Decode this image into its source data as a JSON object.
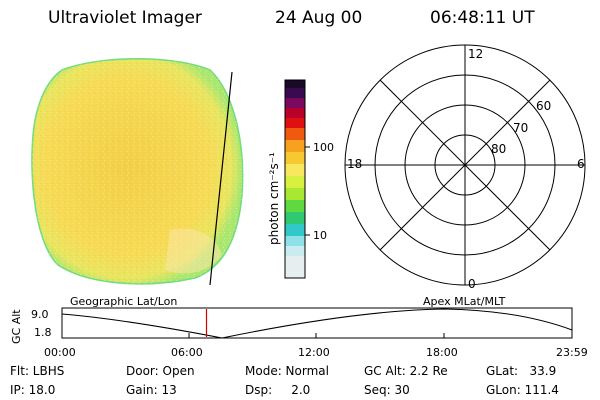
{
  "header": {
    "instrument": "Ultraviolet Imager",
    "date": "24 Aug 00",
    "time": "06:48:11 UT"
  },
  "colors": {
    "disk_main": "#f6d64a",
    "disk_rim": "#cfe86a",
    "disk_edge": "#7fe07a",
    "line": "#000000",
    "marker": "#d40000"
  },
  "colorbar": {
    "label": "photon cm⁻²s⁻¹",
    "ticks": [
      "100",
      "10"
    ],
    "scale": "log"
  },
  "polar": {
    "mlt_labels": [
      "12",
      "18",
      "6",
      "0"
    ],
    "lat_labels": [
      "60",
      "70",
      "80"
    ]
  },
  "timeline": {
    "left_title": "Geographic Lat/Lon",
    "right_title": "Apex MLat/MLT",
    "ylabel": "GC Alt",
    "yticks": [
      "9.0",
      "1.8"
    ],
    "xticks": [
      "00:00",
      "06:00",
      "12:00",
      "18:00",
      "23:59"
    ],
    "marker_hours": 6.8
  },
  "info": {
    "flt": "Flt: LBHS",
    "ip": "IP: 18.0",
    "door": "Door: Open",
    "gain": "Gain: 13",
    "mode": "Mode: Normal",
    "dsp": "Dsp:     2.0",
    "gcalt": "GC Alt: 2.2 Re",
    "seq": "Seq: 30",
    "glat": "GLat:   33.9",
    "glon": "GLon: 111.4"
  }
}
